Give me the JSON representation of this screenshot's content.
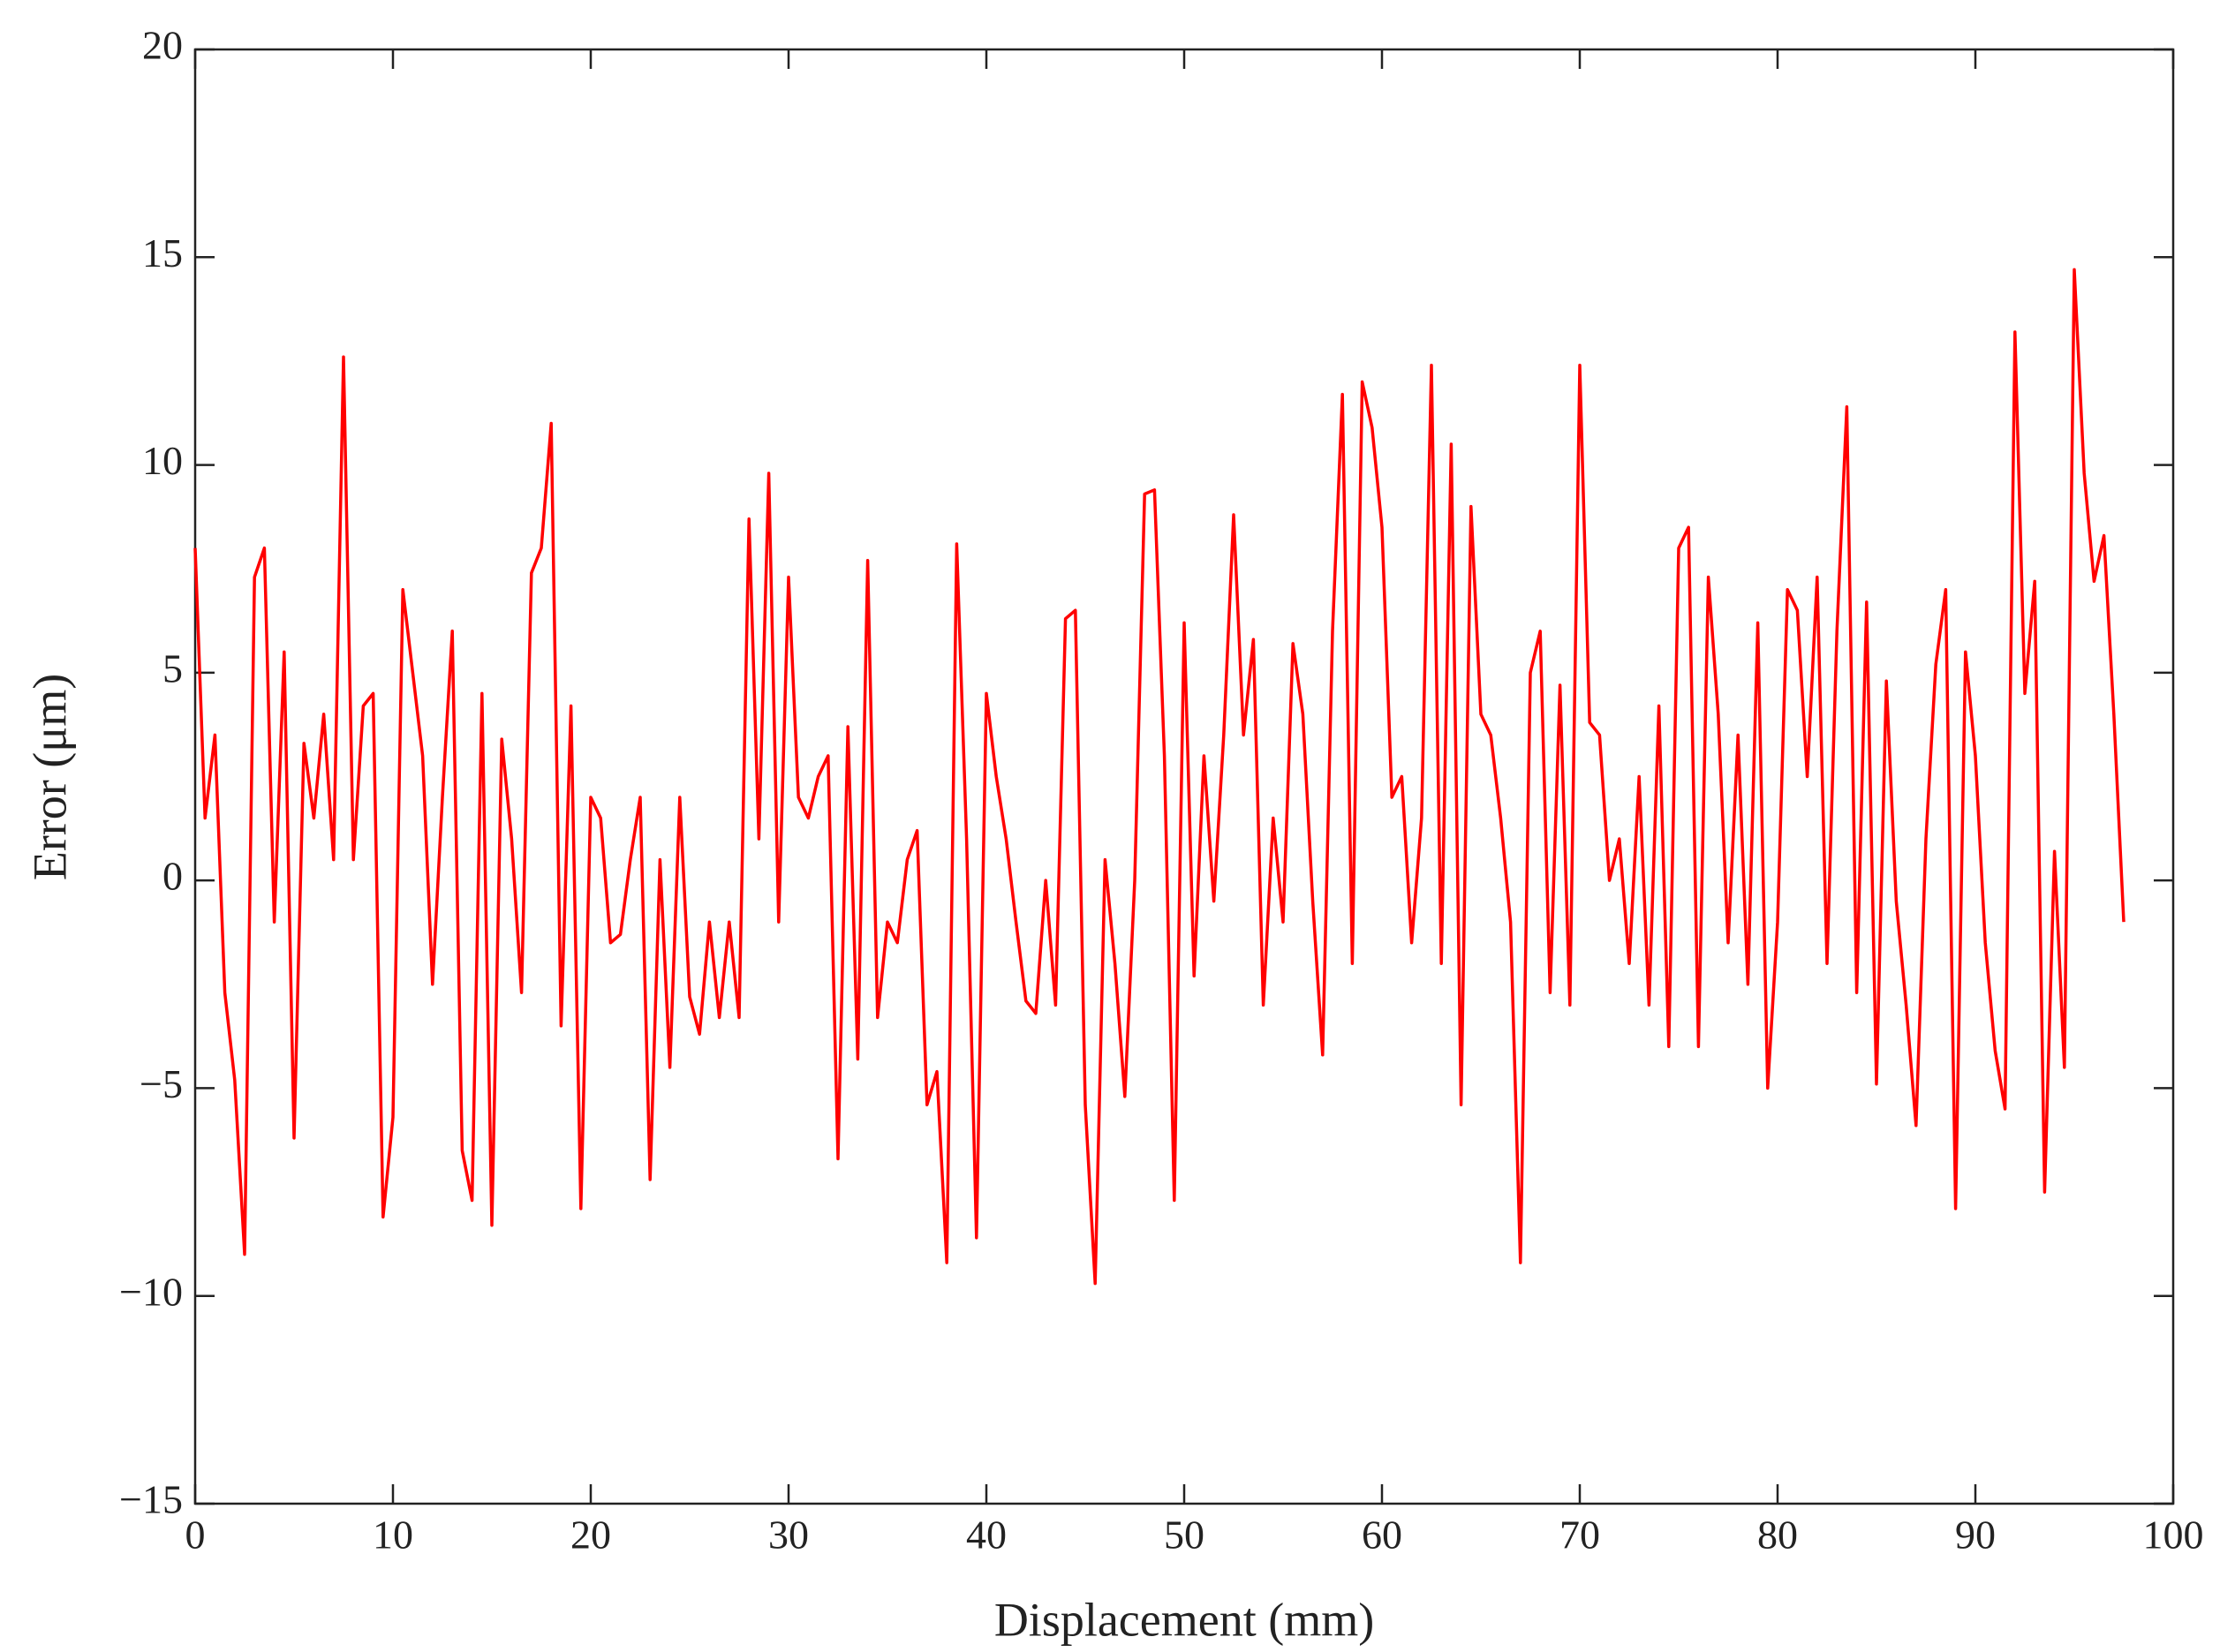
{
  "chart_data": {
    "type": "line",
    "xlabel": "Displacement (mm)",
    "ylabel": "Error (μm)",
    "xlim": [
      0,
      100
    ],
    "xticks": [
      0,
      10,
      20,
      30,
      40,
      50,
      60,
      70,
      80,
      90,
      100
    ],
    "ylim": [
      -15,
      20
    ],
    "yticks": [
      {
        "value": -15,
        "label": "−15"
      },
      {
        "value": -10,
        "label": "−10"
      },
      {
        "value": -5,
        "label": "−5"
      },
      0,
      5,
      10,
      15,
      20
    ],
    "x": [
      0,
      0.5,
      1,
      1.5,
      2,
      2.5,
      3,
      3.5,
      4,
      4.5,
      5,
      5.5,
      6,
      6.5,
      7,
      7.5,
      8,
      8.5,
      9,
      9.5,
      10,
      10.5,
      11,
      11.5,
      12,
      12.5,
      13,
      13.5,
      14,
      14.5,
      15,
      15.5,
      16,
      16.5,
      17,
      17.5,
      18,
      18.5,
      19,
      19.5,
      20,
      20.5,
      21,
      21.5,
      22,
      22.5,
      23,
      23.5,
      24,
      24.5,
      25,
      25.5,
      26,
      26.5,
      27,
      27.5,
      28,
      28.5,
      29,
      29.5,
      30,
      30.5,
      31,
      31.5,
      32,
      32.5,
      33,
      33.5,
      34,
      34.5,
      35,
      35.5,
      36,
      36.5,
      37,
      37.5,
      38,
      38.5,
      39,
      39.5,
      40,
      40.5,
      41,
      41.5,
      42,
      42.5,
      43,
      43.5,
      44,
      44.5,
      45,
      45.5,
      46,
      46.5,
      47,
      47.5,
      48,
      48.5,
      49,
      49.5,
      50,
      50.5,
      51,
      51.5,
      52,
      52.5,
      53,
      53.5,
      54,
      54.5,
      55,
      55.5,
      56,
      56.5,
      57,
      57.5,
      58,
      58.5,
      59,
      59.5,
      60,
      60.5,
      61,
      61.5,
      62,
      62.5,
      63,
      63.5,
      64,
      64.5,
      65,
      65.5,
      66,
      66.5,
      67,
      67.5,
      68,
      68.5,
      69,
      69.5,
      70,
      70.5,
      71,
      71.5,
      72,
      72.5,
      73,
      73.5,
      74,
      74.5,
      75,
      75.5,
      76,
      76.5,
      77,
      77.5,
      78,
      78.5,
      79,
      79.5,
      80,
      80.5,
      81,
      81.5,
      82,
      82.5,
      83,
      83.5,
      84,
      84.5,
      85,
      85.5,
      86,
      86.5,
      87,
      87.5,
      88,
      88.5,
      89,
      89.5,
      90,
      90.5,
      91,
      91.5,
      92,
      92.5,
      93,
      93.5,
      94,
      94.5,
      95,
      95.5,
      96,
      96.5,
      97,
      97.5
    ],
    "series": [
      {
        "color": "#ff0000",
        "values": [
          8,
          1.5,
          3.5,
          -2.7,
          -4.8,
          -9,
          7.3,
          8,
          -1,
          5.5,
          -6.2,
          3.3,
          1.5,
          4,
          0.5,
          12.6,
          0.5,
          4.2,
          4.5,
          -8.1,
          -5.7,
          7,
          5,
          3,
          -2.5,
          2,
          6,
          -6.5,
          -7.7,
          4.5,
          -8.3,
          3.4,
          1,
          -2.7,
          7.4,
          8,
          11,
          -3.5,
          4.2,
          -7.9,
          2,
          1.5,
          -1.5,
          -1.3,
          0.5,
          2,
          -7.2,
          0.5,
          -4.5,
          2,
          -2.8,
          -3.7,
          -1,
          -3.3,
          -1,
          -3.3,
          8.7,
          1,
          9.8,
          -1,
          7.3,
          2,
          1.5,
          2.5,
          3,
          -6.7,
          3.7,
          -4.3,
          7.7,
          -3.3,
          -1,
          -1.5,
          0.5,
          1.2,
          -5.4,
          -4.6,
          -9.2,
          8.1,
          1,
          -8.6,
          4.5,
          2.5,
          1,
          -1,
          -2.9,
          -3.2,
          0,
          -3,
          6.3,
          6.5,
          -5.4,
          -9.7,
          0.5,
          -2,
          -5.2,
          0,
          9.3,
          9.4,
          3,
          -7.7,
          6.2,
          -2.3,
          3,
          -0.5,
          3.5,
          8.8,
          3.5,
          5.8,
          -3,
          1.5,
          -1,
          5.7,
          4,
          -0.5,
          -4.2,
          6,
          11.7,
          -2,
          12,
          10.9,
          8.5,
          2,
          2.5,
          -1.5,
          1.5,
          12.4,
          -2,
          10.5,
          -5.4,
          9,
          4,
          3.5,
          1.5,
          -1,
          -9.2,
          5,
          6,
          -2.7,
          4.7,
          -3,
          12.4,
          3.8,
          3.5,
          0,
          1,
          -2,
          2.5,
          -3,
          4.2,
          -4,
          8,
          8.5,
          -4,
          7.3,
          4,
          -1.5,
          3.5,
          -2.5,
          6.2,
          -5,
          -1,
          7,
          6.5,
          2.5,
          7.3,
          -2,
          6,
          11.4,
          -2.7,
          6.7,
          -4.9,
          4.8,
          -0.5,
          -3,
          -5.9,
          1,
          5.2,
          7,
          -7.9,
          5.5,
          3,
          -1.5,
          -4.1,
          -5.5,
          13.2,
          4.5,
          7.2,
          -7.5,
          0.7,
          -4.5,
          14.7,
          9.8,
          7.2,
          8.3,
          4,
          -1
        ]
      }
    ]
  }
}
